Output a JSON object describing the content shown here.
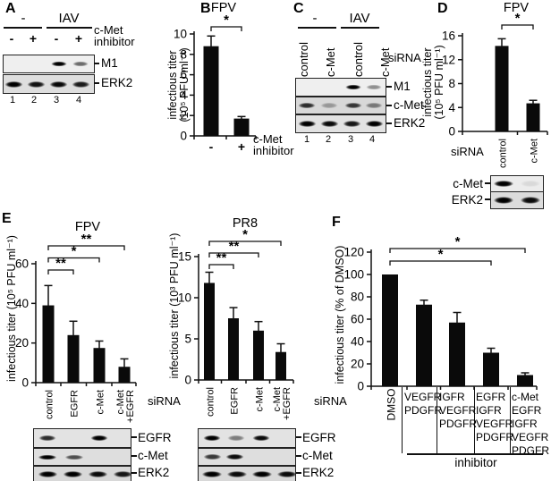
{
  "chart_data": [
    {
      "id": "B",
      "type": "bar",
      "title": "FPV",
      "categories": [
        "-",
        "+"
      ],
      "values": [
        8.8,
        1.7
      ],
      "errors": [
        1.0,
        0.2
      ],
      "ylabel": "infectious titer (10⁵ PFU ml⁻¹)",
      "ylim": [
        0,
        10
      ],
      "yticks": [
        0,
        2,
        4,
        6,
        8,
        10
      ],
      "grid": false,
      "x_unit": "c-Met\ninhibitor",
      "significance": [
        {
          "from": 0,
          "to": 1,
          "label": "*",
          "row": 0
        }
      ]
    },
    {
      "id": "D",
      "type": "bar",
      "title": "FPV",
      "categories": [
        "control",
        "c-Met"
      ],
      "values": [
        14.3,
        4.7
      ],
      "errors": [
        1.2,
        0.5
      ],
      "ylabel": "infectious titer (10⁵ PFU ml⁻¹)",
      "ylim": [
        0,
        16
      ],
      "yticks": [
        0,
        4,
        8,
        12,
        16
      ],
      "grid": false,
      "x_unit": "siRNA",
      "significance": [
        {
          "from": 0,
          "to": 1,
          "label": "*",
          "row": 0
        }
      ]
    },
    {
      "id": "E_FPV",
      "type": "bar",
      "title": "FPV",
      "categories": [
        "control",
        "EGFR",
        "c-Met",
        "c-Met\n+EGFR"
      ],
      "values": [
        39,
        24,
        17.5,
        8
      ],
      "errors": [
        10,
        7,
        3.5,
        4
      ],
      "ylabel": "infectious titer (10⁵ PFU ml⁻¹)",
      "ylim": [
        0,
        60
      ],
      "yticks": [
        0,
        20,
        40,
        60
      ],
      "grid": false,
      "x_unit": "siRNA",
      "significance": [
        {
          "from": 0,
          "to": 1,
          "label": "**",
          "row": 0
        },
        {
          "from": 0,
          "to": 2,
          "label": "*",
          "row": 1
        },
        {
          "from": 0,
          "to": 3,
          "label": "**",
          "row": 2
        }
      ]
    },
    {
      "id": "E_PR8",
      "type": "bar",
      "title": "PR8",
      "categories": [
        "control",
        "EGFR",
        "c-Met",
        "c-Met\n+EGFR"
      ],
      "values": [
        11.8,
        7.5,
        6.0,
        3.4
      ],
      "errors": [
        1.3,
        1.3,
        1.1,
        1.0
      ],
      "ylabel": "infectious titer (10³ PFU ml⁻¹)",
      "ylim": [
        0,
        15
      ],
      "yticks": [
        0,
        5,
        10,
        15
      ],
      "grid": false,
      "x_unit": "siRNA",
      "significance": [
        {
          "from": 0,
          "to": 1,
          "label": "**",
          "row": 0
        },
        {
          "from": 0,
          "to": 2,
          "label": "**",
          "row": 1
        },
        {
          "from": 0,
          "to": 3,
          "label": "*",
          "row": 2
        }
      ]
    },
    {
      "id": "F",
      "type": "bar",
      "title": "",
      "categories": [
        "DMSO",
        "VEGFR+PDGFR",
        "IGFR+VEGFR+PDGFR",
        "EGFR+IGFR+VEGFR+PDGFR",
        "c-Met+EGFR+IGFR+VEGFR+PDGFR"
      ],
      "values": [
        100,
        73,
        57,
        30,
        10
      ],
      "errors": [
        0,
        4,
        9,
        4,
        2
      ],
      "ylabel": "infectious titer (% of DMSO)",
      "ylim": [
        0,
        120
      ],
      "yticks": [
        0,
        20,
        40,
        60,
        80,
        100,
        120
      ],
      "grid": false,
      "x_unit": "inhibitor",
      "significance": [
        {
          "from": 0,
          "to": 3,
          "label": "*",
          "row": 0
        },
        {
          "from": 0,
          "to": 4,
          "label": "*",
          "row": 1
        }
      ]
    }
  ],
  "panels": {
    "A": {
      "label": "A",
      "group_minus": "-",
      "group_iav": "IAV",
      "drug_label": "c-Met\ninhibitor",
      "signs": [
        "-",
        "+",
        "-",
        "+"
      ],
      "lane_numbers": [
        "1",
        "2",
        "3",
        "4"
      ],
      "blots": [
        {
          "name": "M1",
          "bands": [
            0,
            0,
            1,
            0.55
          ]
        },
        {
          "name": "ERK2",
          "bands": [
            1,
            0.92,
            0.96,
            0.88
          ]
        }
      ]
    },
    "B": {
      "label": "B"
    },
    "C": {
      "label": "C",
      "group_minus": "-",
      "group_iav": "IAV",
      "sirna_label": "siRNA",
      "lane_labels": [
        "control",
        "c-Met",
        "control",
        "c-Met"
      ],
      "lane_numbers": [
        "1",
        "2",
        "3",
        "4"
      ],
      "blots": [
        {
          "name": "M1",
          "bands": [
            0,
            0,
            1,
            0.4
          ]
        },
        {
          "name": "c-Met",
          "bands": [
            0.8,
            0.3,
            0.75,
            0.45
          ]
        },
        {
          "name": "ERK2",
          "bands": [
            1,
            0.95,
            0.9,
            1
          ]
        }
      ]
    },
    "D": {
      "label": "D",
      "sirna_label": "siRNA",
      "blots": [
        {
          "name": "c-Met",
          "bands": [
            1,
            0.08
          ]
        },
        {
          "name": "ERK2",
          "bands": [
            1,
            0.95
          ]
        }
      ]
    },
    "E": {
      "label": "E",
      "sirna_label": "siRNA",
      "fpv_blots": [
        {
          "name": "EGFR",
          "bands": [
            0.8,
            0,
            1,
            0
          ]
        },
        {
          "name": "c-Met",
          "bands": [
            1,
            0.65,
            0,
            0
          ]
        },
        {
          "name": "ERK2",
          "bands": [
            1,
            1,
            0.95,
            0.9
          ]
        }
      ],
      "pr8_blots": [
        {
          "name": "EGFR",
          "bands": [
            1,
            0.45,
            0.95,
            0
          ]
        },
        {
          "name": "c-Met",
          "bands": [
            0.75,
            0.95,
            0,
            0
          ]
        },
        {
          "name": "ERK2",
          "bands": [
            1,
            0.95,
            1,
            0.95
          ]
        }
      ]
    },
    "F": {
      "label": "F",
      "dmso_label": "DMSO",
      "inhibitor_columns": [
        "VEGFR\nPDGFR",
        "IGFR\nVEGFR\nPDGFR",
        "EGFR\nIGFR\nVEGFR\nPDGFR",
        "c-Met\nEGFR\nIGFR\nVEGFR\nPDGFR"
      ],
      "group_label": "inhibitor"
    }
  }
}
